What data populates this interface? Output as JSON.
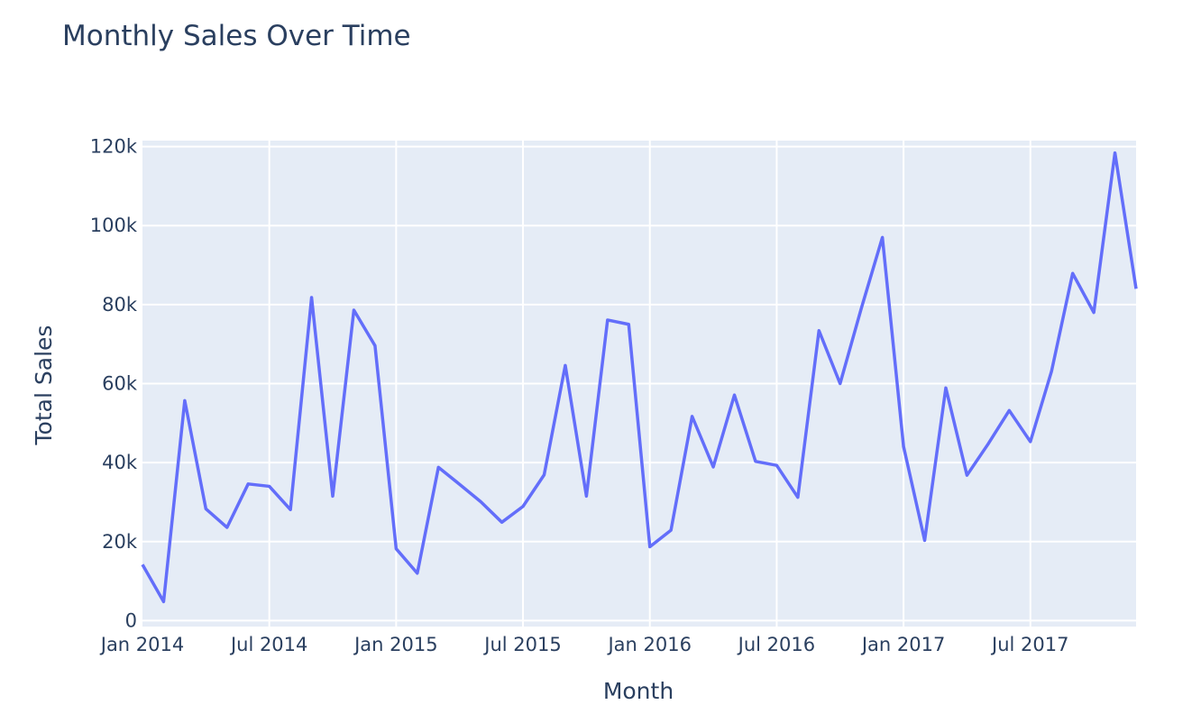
{
  "colors": {
    "plot_bg": "#e5ecf6",
    "grid": "#ffffff",
    "line": "#636efa",
    "text": "#2a3f5f"
  },
  "chart_data": {
    "type": "line",
    "title": "Monthly Sales Over Time",
    "xlabel": "Month",
    "ylabel": "Total Sales",
    "grid": true,
    "xlim": [
      "2014-01",
      "2017-12"
    ],
    "ylim": [
      -1500,
      121500
    ],
    "x_ticks": [
      {
        "date": "2014-01",
        "label": "Jan 2014"
      },
      {
        "date": "2014-07",
        "label": "Jul 2014"
      },
      {
        "date": "2015-01",
        "label": "Jan 2015"
      },
      {
        "date": "2015-07",
        "label": "Jul 2015"
      },
      {
        "date": "2016-01",
        "label": "Jan 2016"
      },
      {
        "date": "2016-07",
        "label": "Jul 2016"
      },
      {
        "date": "2017-01",
        "label": "Jan 2017"
      },
      {
        "date": "2017-07",
        "label": "Jul 2017"
      }
    ],
    "y_ticks": [
      {
        "value": 0,
        "label": "0"
      },
      {
        "value": 20000,
        "label": "20k"
      },
      {
        "value": 40000,
        "label": "40k"
      },
      {
        "value": 60000,
        "label": "60k"
      },
      {
        "value": 80000,
        "label": "80k"
      },
      {
        "value": 100000,
        "label": "100k"
      },
      {
        "value": 120000,
        "label": "120k"
      }
    ],
    "x": [
      "2014-01",
      "2014-02",
      "2014-03",
      "2014-04",
      "2014-05",
      "2014-06",
      "2014-07",
      "2014-08",
      "2014-09",
      "2014-10",
      "2014-11",
      "2014-12",
      "2015-01",
      "2015-02",
      "2015-03",
      "2015-04",
      "2015-05",
      "2015-06",
      "2015-07",
      "2015-08",
      "2015-09",
      "2015-10",
      "2015-11",
      "2015-12",
      "2016-01",
      "2016-02",
      "2016-03",
      "2016-04",
      "2016-05",
      "2016-06",
      "2016-07",
      "2016-08",
      "2016-09",
      "2016-10",
      "2016-11",
      "2016-12",
      "2017-01",
      "2017-02",
      "2017-03",
      "2017-04",
      "2017-05",
      "2017-06",
      "2017-07",
      "2017-08",
      "2017-09",
      "2017-10",
      "2017-11",
      "2017-12"
    ],
    "series": [
      {
        "values": [
          14200,
          4800,
          55700,
          28300,
          23600,
          34600,
          34000,
          28100,
          81800,
          31500,
          78600,
          69600,
          18200,
          12000,
          38800,
          34500,
          30100,
          24900,
          28900,
          36900,
          64600,
          31500,
          76100,
          75000,
          18700,
          22900,
          51700,
          38900,
          57100,
          40300,
          39300,
          31200,
          73400,
          60000,
          79000,
          97000,
          44100,
          20300,
          58900,
          36800,
          44700,
          53200,
          45300,
          63100,
          87900,
          78000,
          118400,
          84000
        ]
      }
    ]
  }
}
